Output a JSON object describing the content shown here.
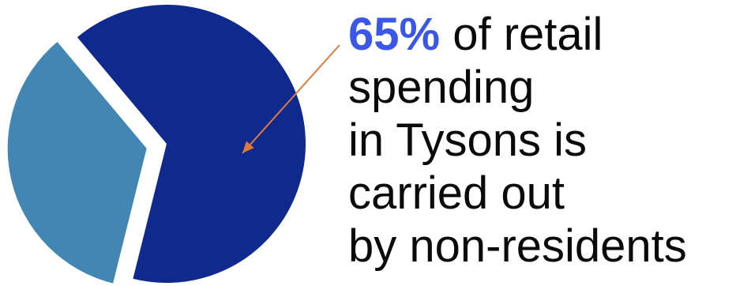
{
  "chart_data": {
    "type": "pie",
    "exploded": true,
    "slices": [
      {
        "value": 65,
        "color": "#10298f"
      },
      {
        "value": 35,
        "color": "#4287b3"
      }
    ],
    "annotation": {
      "highlight": "65%",
      "lines": [
        " of retail",
        "spending",
        "in Tysons is",
        "carried out",
        "by non-residents"
      ],
      "highlight_color": "#3b57e8",
      "arrow_color": "#e07a3a",
      "points_to_slice": 0
    }
  }
}
